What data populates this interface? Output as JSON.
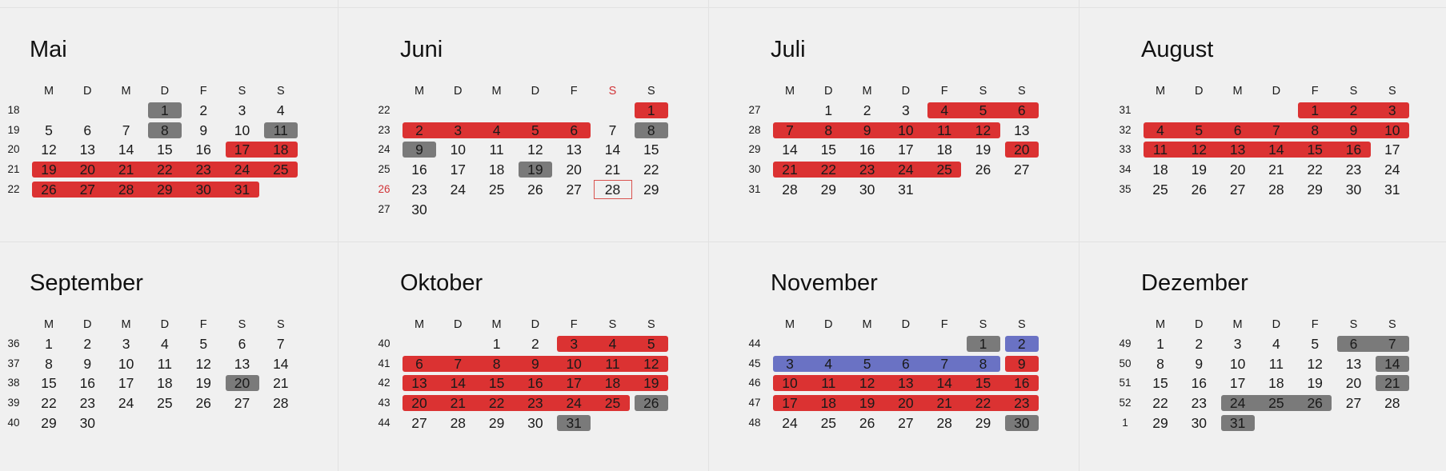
{
  "colors": {
    "holiday_red": "#db3232",
    "weekend_gray": "#7a7a7a",
    "vacation_blue": "#6a72c4",
    "today_outline": "#d9534f"
  },
  "weekday_headers": [
    "M",
    "D",
    "M",
    "D",
    "F",
    "S",
    "S"
  ],
  "months": [
    {
      "name": "Mai",
      "firstDow": 3,
      "days": 31,
      "weeks": [
        "18",
        "19",
        "20",
        "21",
        "22"
      ],
      "marks": {
        "red": [
          17,
          18,
          19,
          20,
          21,
          22,
          23,
          24,
          25,
          26,
          27,
          28,
          29,
          30,
          31
        ],
        "gray": [
          1,
          8,
          11
        ],
        "blue": []
      }
    },
    {
      "name": "Juni",
      "firstDow": 6,
      "days": 30,
      "weeks": [
        "22",
        "23",
        "24",
        "25",
        "26",
        "27"
      ],
      "redHeader": 5,
      "redWeekRow": 4,
      "today": 28,
      "marks": {
        "red": [
          1,
          2,
          3,
          4,
          5,
          6
        ],
        "gray": [
          8,
          9,
          19
        ],
        "blue": []
      }
    },
    {
      "name": "Juli",
      "firstDow": 1,
      "days": 31,
      "weeks": [
        "27",
        "28",
        "29",
        "30",
        "31"
      ],
      "marks": {
        "red": [
          4,
          5,
          6,
          7,
          8,
          9,
          10,
          11,
          12,
          20,
          21,
          22,
          23,
          24,
          25
        ],
        "gray": [],
        "blue": []
      }
    },
    {
      "name": "August",
      "firstDow": 4,
      "days": 31,
      "weeks": [
        "31",
        "32",
        "33",
        "34",
        "35"
      ],
      "marks": {
        "red": [
          1,
          2,
          3,
          4,
          5,
          6,
          7,
          8,
          9,
          10,
          11,
          12,
          13,
          14,
          15,
          16
        ],
        "gray": [],
        "blue": []
      }
    },
    {
      "name": "September",
      "firstDow": 0,
      "days": 30,
      "weeks": [
        "36",
        "37",
        "38",
        "39",
        "40"
      ],
      "marks": {
        "red": [],
        "gray": [
          20
        ],
        "blue": []
      }
    },
    {
      "name": "Oktober",
      "firstDow": 2,
      "days": 31,
      "weeks": [
        "40",
        "41",
        "42",
        "43",
        "44"
      ],
      "marks": {
        "red": [
          3,
          4,
          5,
          6,
          7,
          8,
          9,
          10,
          11,
          12,
          13,
          14,
          15,
          16,
          17,
          18,
          19,
          20,
          21,
          22,
          23,
          24,
          25
        ],
        "gray": [
          26,
          31
        ],
        "blue": []
      }
    },
    {
      "name": "November",
      "firstDow": 5,
      "days": 30,
      "weeks": [
        "44",
        "45",
        "46",
        "47",
        "48"
      ],
      "marks": {
        "red": [
          9,
          10,
          11,
          12,
          13,
          14,
          15,
          16,
          17,
          18,
          19,
          20,
          21,
          22,
          23
        ],
        "gray": [
          1,
          30
        ],
        "blue": [
          2,
          3,
          4,
          5,
          6,
          7,
          8
        ]
      }
    },
    {
      "name": "Dezember",
      "firstDow": 0,
      "days": 31,
      "weeks": [
        "49",
        "50",
        "51",
        "52",
        "1"
      ],
      "marks": {
        "red": [],
        "gray": [
          6,
          7,
          14,
          21,
          24,
          25,
          26,
          31
        ],
        "blue": []
      }
    }
  ]
}
